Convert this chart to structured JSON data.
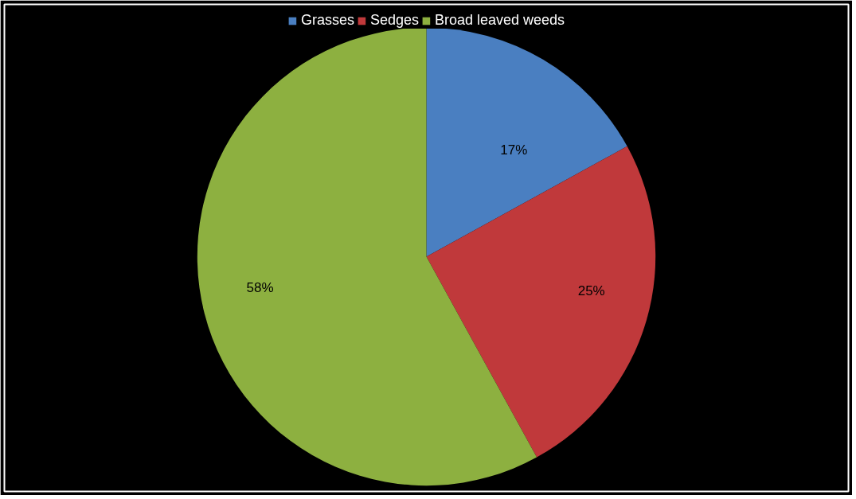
{
  "chart_data": {
    "type": "pie",
    "categories": [
      "Grasses",
      "Sedges",
      "Broad leaved weeds"
    ],
    "values": [
      17,
      25,
      58
    ],
    "colors": [
      "#4a7fc1",
      "#c0393b",
      "#8db040"
    ],
    "value_labels": [
      "17%",
      "25%",
      "58%"
    ],
    "legend": "top"
  }
}
